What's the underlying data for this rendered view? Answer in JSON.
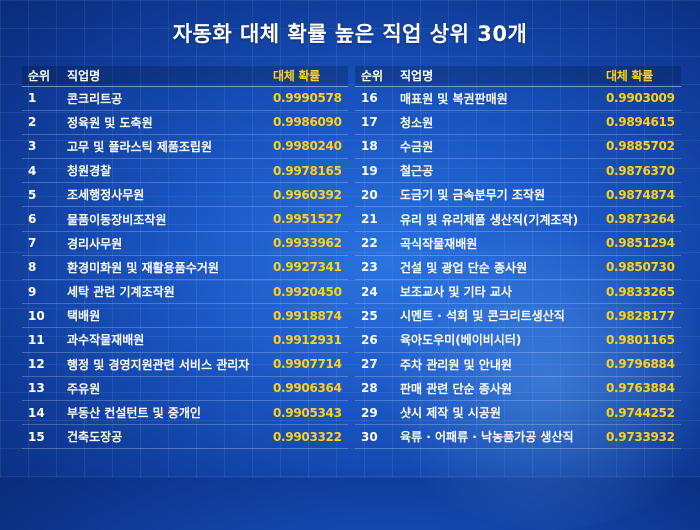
{
  "title": "자동화 대체 확률 높은 직업 상위 30개",
  "headers": {
    "rank": "순위",
    "job": "직업명",
    "prob": "대체 확률"
  },
  "left": [
    {
      "rank": "1",
      "job": "콘크리트공",
      "prob": "0.9990578"
    },
    {
      "rank": "2",
      "job": "정육원 및 도축원",
      "prob": "0.9986090"
    },
    {
      "rank": "3",
      "job": "고무 및 플라스틱 제품조립원",
      "prob": "0.9980240"
    },
    {
      "rank": "4",
      "job": "청원경찰",
      "prob": "0.9978165"
    },
    {
      "rank": "5",
      "job": "조세행정사무원",
      "prob": "0.9960392"
    },
    {
      "rank": "6",
      "job": "물품이동장비조작원",
      "prob": "0.9951527"
    },
    {
      "rank": "7",
      "job": "경리사무원",
      "prob": "0.9933962"
    },
    {
      "rank": "8",
      "job": "환경미화원 및 재활용품수거원",
      "prob": "0.9927341"
    },
    {
      "rank": "9",
      "job": "세탁 관련 기계조작원",
      "prob": "0.9920450"
    },
    {
      "rank": "10",
      "job": "택배원",
      "prob": "0.9918874"
    },
    {
      "rank": "11",
      "job": "과수작물재배원",
      "prob": "0.9912931"
    },
    {
      "rank": "12",
      "job": "행정 및 경영지원관련 서비스 관리자",
      "prob": "0.9907714"
    },
    {
      "rank": "13",
      "job": "주유원",
      "prob": "0.9906364"
    },
    {
      "rank": "14",
      "job": "부동산 컨설턴트 및 중개인",
      "prob": "0.9905343"
    },
    {
      "rank": "15",
      "job": "건축도장공",
      "prob": "0.9903322"
    }
  ],
  "right": [
    {
      "rank": "16",
      "job": "매표원 및 복권판매원",
      "prob": "0.9903009"
    },
    {
      "rank": "17",
      "job": "청소원",
      "prob": "0.9894615"
    },
    {
      "rank": "18",
      "job": "수금원",
      "prob": "0.9885702"
    },
    {
      "rank": "19",
      "job": "철근공",
      "prob": "0.9876370"
    },
    {
      "rank": "20",
      "job": "도금기 및 금속분무기 조작원",
      "prob": "0.9874874"
    },
    {
      "rank": "21",
      "job": "유리 및 유리제품 생산직(기계조작)",
      "prob": "0.9873264"
    },
    {
      "rank": "22",
      "job": "곡식작물재배원",
      "prob": "0.9851294"
    },
    {
      "rank": "23",
      "job": "건설 및 광업 단순 종사원",
      "prob": "0.9850730"
    },
    {
      "rank": "24",
      "job": "보조교사 및 기타 교사",
      "prob": "0.9833265"
    },
    {
      "rank": "25",
      "job": "시멘트 · 석회 및 콘크리트생산직",
      "prob": "0.9828177"
    },
    {
      "rank": "26",
      "job": "육아도우미(베이비시터)",
      "prob": "0.9801165"
    },
    {
      "rank": "27",
      "job": "주차 관리원 및 안내원",
      "prob": "0.9796884"
    },
    {
      "rank": "28",
      "job": "판매 관련 단순 종사원",
      "prob": "0.9763884"
    },
    {
      "rank": "29",
      "job": "샷시 제작 및 시공원",
      "prob": "0.9744252"
    },
    {
      "rank": "30",
      "job": "육류 · 어패류 · 낙농품가공 생산직",
      "prob": "0.9733932"
    }
  ],
  "colors": {
    "accent": "#ffd21a",
    "background": "#1a55c2"
  }
}
